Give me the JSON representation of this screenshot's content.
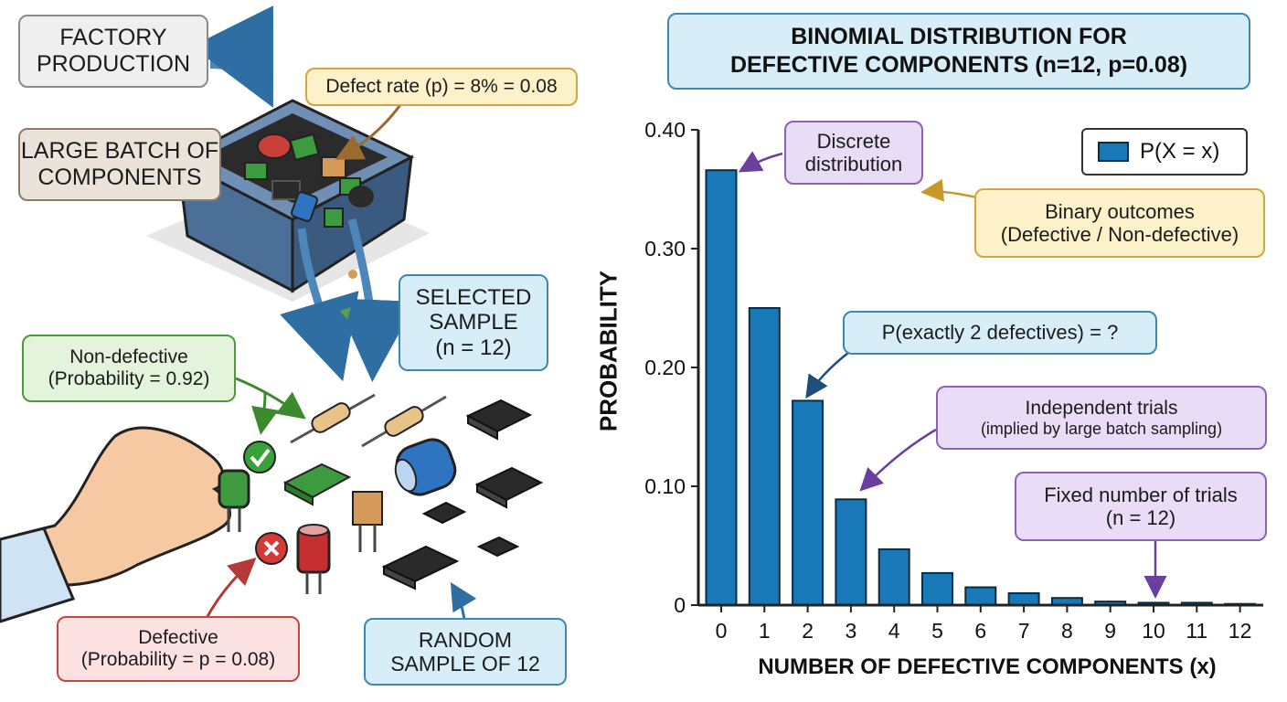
{
  "labels": {
    "factory_line1": "FACTORY",
    "factory_line2": "PRODUCTION",
    "batch_line1": "LARGE BATCH OF",
    "batch_line2": "COMPONENTS",
    "defect_rate": "Defect rate (p) = 8% = 0.08",
    "selected_line1": "SELECTED",
    "selected_line2": "SAMPLE",
    "selected_line3": "(n = 12)",
    "nondef_line1": "Non-defective",
    "nondef_line2": "(Probability = 0.92)",
    "defective_line1": "Defective",
    "defective_line2": "(Probability = p = 0.08)",
    "random_line1": "RANDOM",
    "random_line2": "SAMPLE OF 12"
  },
  "annotations": {
    "discrete_line1": "Discrete",
    "discrete_line2": "distribution",
    "binary_line1": "Binary outcomes",
    "binary_line2": "(Defective / Non-defective)",
    "exactly2": "P(exactly 2 defectives) = ?",
    "independent_line1": "Independent trials",
    "independent_line2": "(implied by large batch sampling)",
    "fixed_line1": "Fixed number of trials",
    "fixed_line2": "(n = 12)"
  },
  "colors": {
    "bar": "#1878b8",
    "bar_outline": "#0c2c44",
    "title_bg": "#d7edf7",
    "annotation_purple": "#e8dcf6"
  },
  "chart_data": {
    "type": "bar",
    "title_line1": "BINOMIAL DISTRIBUTION FOR",
    "title_line2": "DEFECTIVE COMPONENTS (n=12, p=0.08)",
    "xlabel": "NUMBER OF DEFECTIVE COMPONENTS (x)",
    "ylabel": "PROBABILITY",
    "legend": "P(X = x)",
    "legend_position": "top-right",
    "categories": [
      "0",
      "1",
      "2",
      "3",
      "4",
      "5",
      "6",
      "7",
      "8",
      "9",
      "10",
      "11",
      "12"
    ],
    "values": [
      0.366,
      0.25,
      0.172,
      0.089,
      0.047,
      0.027,
      0.015,
      0.01,
      0.006,
      0.003,
      0.002,
      0.002,
      0.001
    ],
    "yticks": [
      "0",
      "0.10",
      "0.20",
      "0.30",
      "0.40"
    ],
    "ylim": [
      0,
      0.4
    ],
    "grid": false
  }
}
